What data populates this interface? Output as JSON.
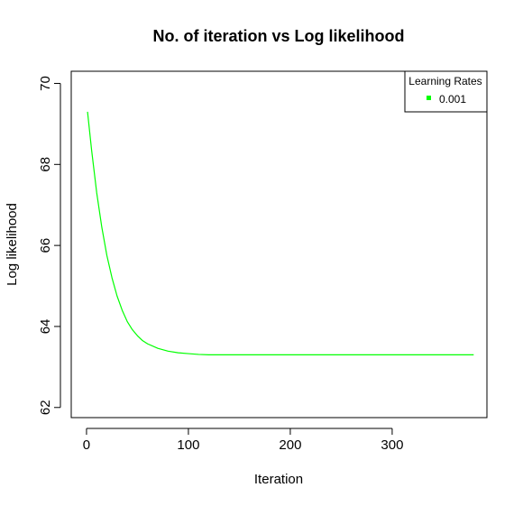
{
  "chart_data": {
    "type": "line",
    "title": "No. of iteration vs Log likelihood",
    "xlabel": "Iteration",
    "ylabel": "Log likelihood",
    "xlim": [
      -15,
      393
    ],
    "ylim": [
      61.75,
      70.3
    ],
    "xticks": [
      0,
      100,
      200,
      300
    ],
    "yticks": [
      62,
      64,
      66,
      68,
      70
    ],
    "legend": {
      "title": "Learning Rates",
      "placement": "top-right",
      "entries": [
        {
          "label": "0.001",
          "color": "#00ff00"
        }
      ]
    },
    "series": [
      {
        "name": "0.001",
        "color": "#00ff00",
        "x": [
          1,
          5,
          10,
          15,
          20,
          25,
          30,
          35,
          40,
          45,
          50,
          55,
          60,
          70,
          80,
          90,
          100,
          110,
          120,
          130,
          140,
          160,
          180,
          200,
          250,
          300,
          350,
          380
        ],
        "y": [
          69.3,
          68.35,
          67.3,
          66.45,
          65.75,
          65.2,
          64.75,
          64.4,
          64.12,
          63.92,
          63.77,
          63.65,
          63.57,
          63.46,
          63.39,
          63.35,
          63.33,
          63.31,
          63.3,
          63.3,
          63.3,
          63.3,
          63.3,
          63.3,
          63.3,
          63.3,
          63.3,
          63.3
        ]
      }
    ]
  }
}
